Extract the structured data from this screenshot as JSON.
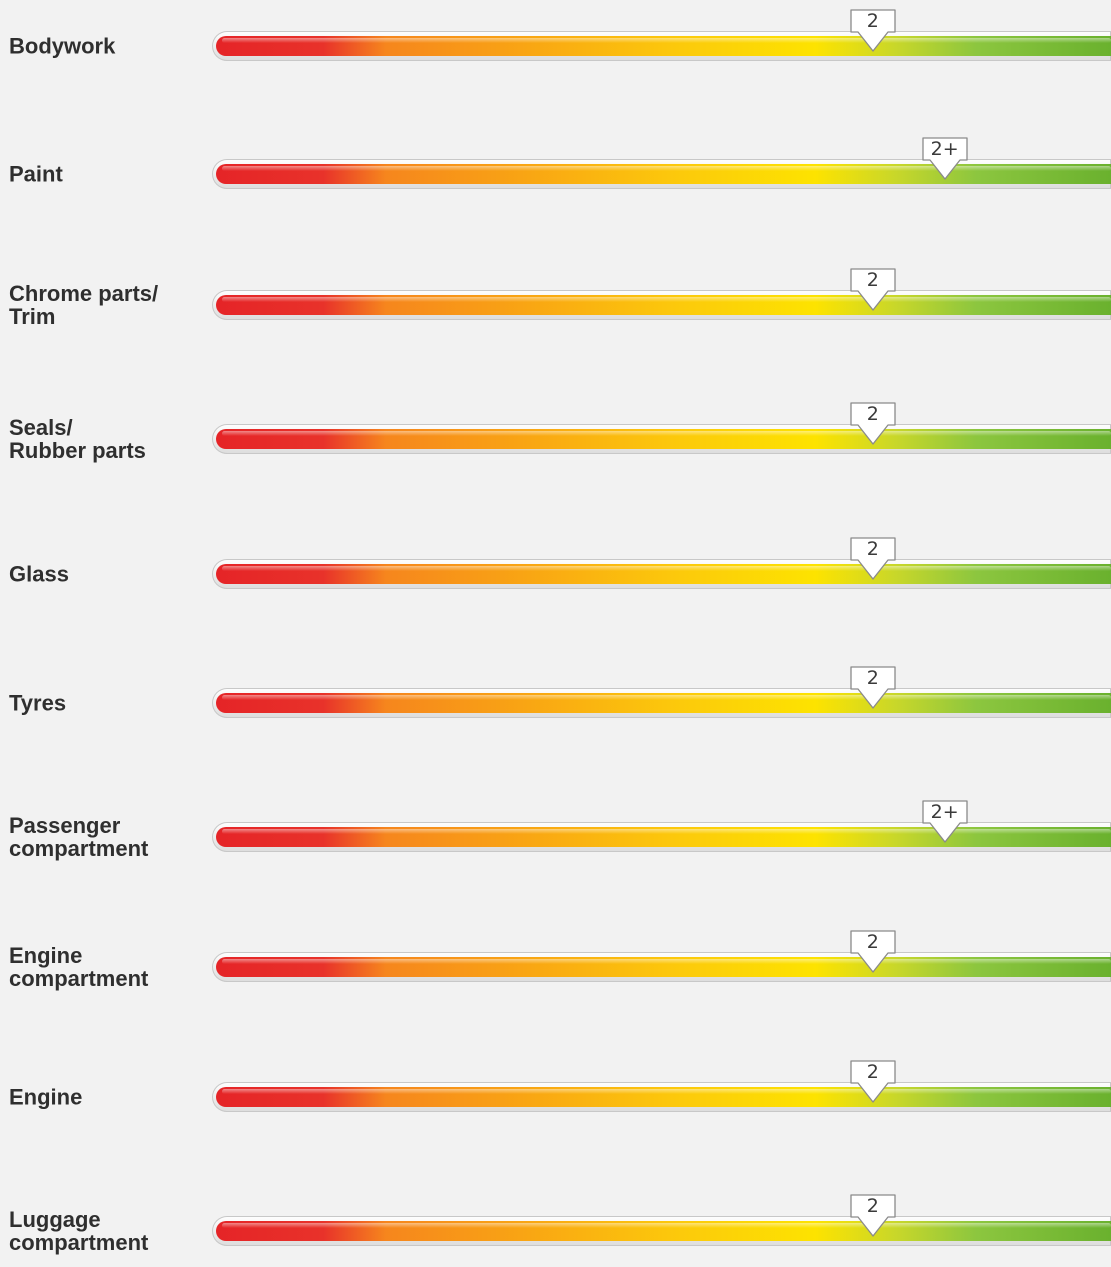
{
  "scale": {
    "colors": [
      "#e52427",
      "#f6861d",
      "#fcca0b",
      "#fde300",
      "#8cc63f",
      "#6ab12e"
    ]
  },
  "ratings": [
    {
      "label": "Bodywork",
      "grade": "2",
      "level": 0.735
    },
    {
      "label": "Paint",
      "grade": "2+",
      "level": 0.815
    },
    {
      "label": "Chrome parts/\nTrim",
      "grade": "2",
      "level": 0.735
    },
    {
      "label": "Seals/\nRubber parts",
      "grade": "2",
      "level": 0.735
    },
    {
      "label": "Glass",
      "grade": "2",
      "level": 0.735
    },
    {
      "label": "Tyres",
      "grade": "2",
      "level": 0.735
    },
    {
      "label": "Passenger\ncompartment",
      "grade": "2+",
      "level": 0.815
    },
    {
      "label": "Engine\ncompartment",
      "grade": "2",
      "level": 0.735
    },
    {
      "label": "Engine",
      "grade": "2",
      "level": 0.735
    },
    {
      "label": "Luggage\ncompartment",
      "grade": "2",
      "level": 0.735
    }
  ]
}
